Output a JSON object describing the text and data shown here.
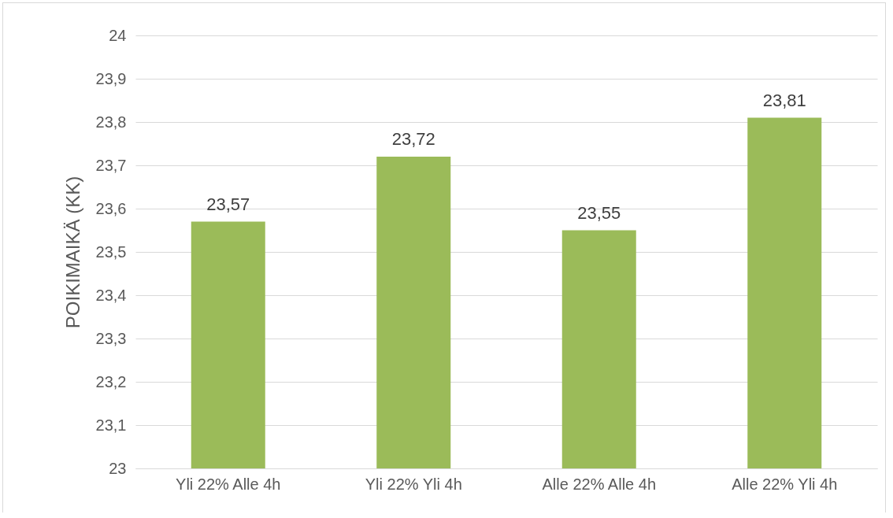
{
  "chart_data": {
    "type": "bar",
    "ylabel": "POIKIMAIKÄ (KK)",
    "categories": [
      "Yli 22% Alle 4h",
      "Yli 22% Yli 4h",
      "Alle 22% Alle 4h",
      "Alle 22% Yli 4h"
    ],
    "values": [
      23.57,
      23.72,
      23.55,
      23.81
    ],
    "value_labels": [
      "23,57",
      "23,72",
      "23,55",
      "23,81"
    ],
    "color": "#9bbb59",
    "ylim": [
      23,
      24
    ],
    "yticks": [
      23,
      {
        "value": 23.1,
        "label": "23,1"
      },
      {
        "value": 23.2,
        "label": "23,2"
      },
      {
        "value": 23.3,
        "label": "23,3"
      },
      {
        "value": 23.4,
        "label": "23,4"
      },
      {
        "value": 23.5,
        "label": "23,5"
      },
      {
        "value": 23.6,
        "label": "23,6"
      },
      {
        "value": 23.7,
        "label": "23,7"
      },
      {
        "value": 23.8,
        "label": "23,8"
      },
      {
        "value": 23.9,
        "label": "23,9"
      },
      24
    ],
    "grid": true
  }
}
